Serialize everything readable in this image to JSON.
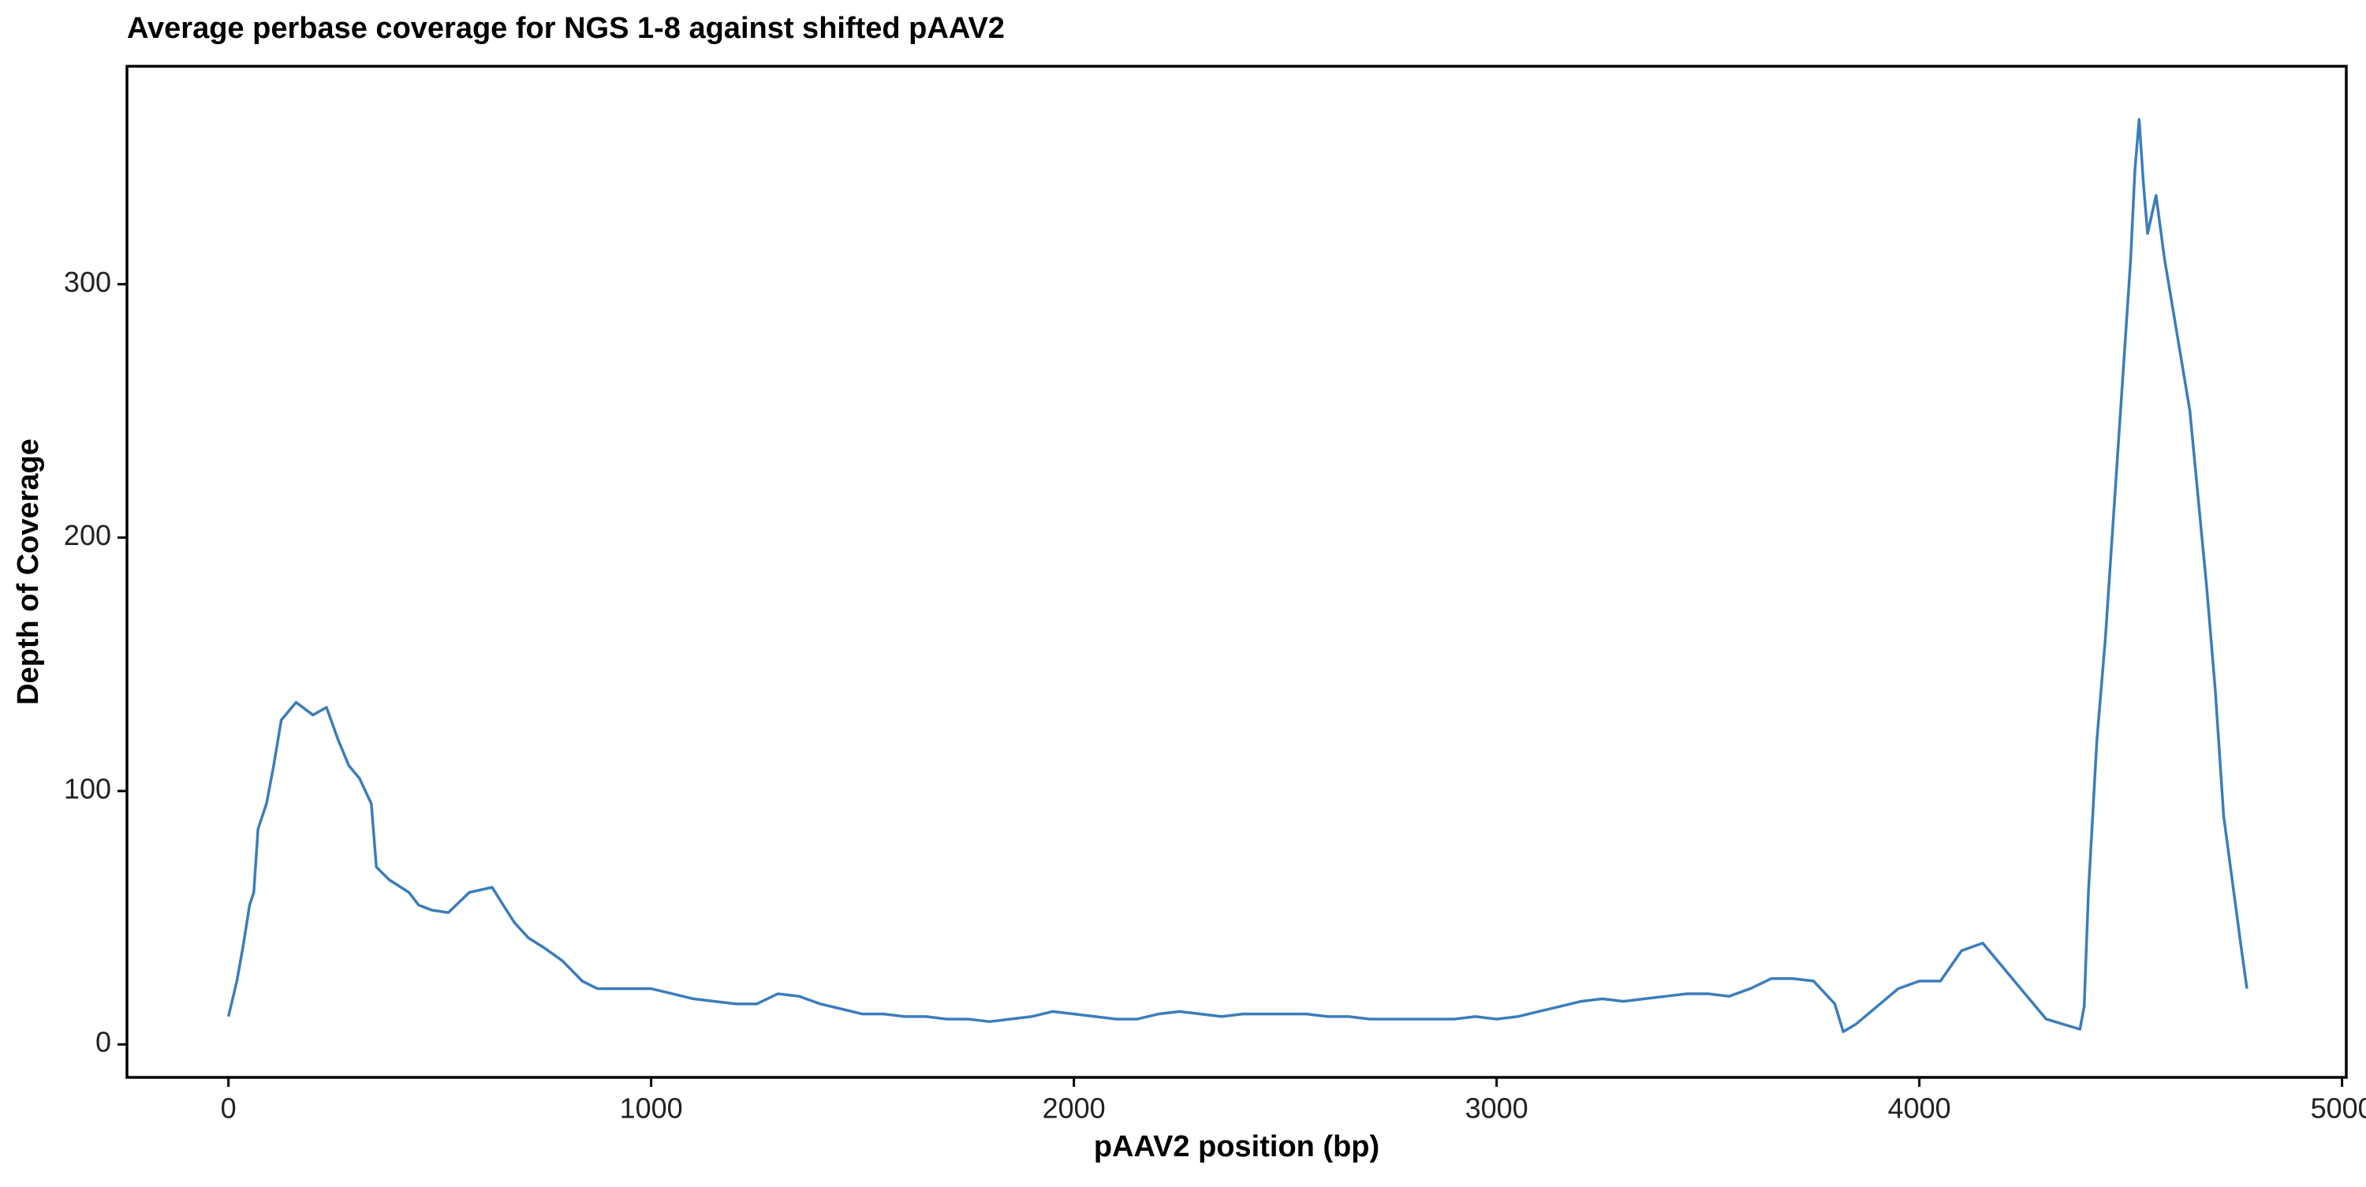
{
  "chart_data": {
    "type": "line",
    "title": "Average perbase coverage for NGS 1-8 against shifted pAAV2",
    "x_label": "pAAV2 position (bp)",
    "y_label": "Depth of Coverage",
    "color": "#3b7dbb",
    "x": [
      0,
      10,
      20,
      36,
      50,
      60,
      70,
      90,
      107,
      125,
      160,
      200,
      232,
      260,
      285,
      310,
      338,
      350,
      380,
      427,
      450,
      481,
      520,
      570,
      624,
      650,
      677,
      710,
      748,
      790,
      837,
      873,
      900,
      950,
      1000,
      1050,
      1100,
      1150,
      1200,
      1250,
      1300,
      1350,
      1400,
      1450,
      1500,
      1550,
      1600,
      1650,
      1700,
      1750,
      1800,
      1850,
      1900,
      1950,
      2000,
      2050,
      2100,
      2150,
      2200,
      2250,
      2300,
      2350,
      2400,
      2450,
      2500,
      2550,
      2600,
      2650,
      2700,
      2750,
      2800,
      2850,
      2900,
      2950,
      3000,
      3050,
      3100,
      3150,
      3200,
      3250,
      3300,
      3350,
      3400,
      3450,
      3500,
      3550,
      3600,
      3650,
      3700,
      3750,
      3800,
      3820,
      3850,
      3900,
      3950,
      4000,
      4050,
      4100,
      4150,
      4200,
      4250,
      4300,
      4340,
      4360,
      4380,
      4390,
      4400,
      4420,
      4440,
      4460,
      4480,
      4500,
      4510,
      4520,
      4530,
      4540,
      4560,
      4580,
      4600,
      4620,
      4640,
      4660,
      4680,
      4700,
      4720,
      4740,
      4760,
      4775
    ],
    "values": [
      11,
      18,
      25,
      40,
      55,
      60,
      85,
      95,
      110,
      128,
      135,
      130,
      133,
      120,
      110,
      105,
      95,
      70,
      65,
      60,
      55,
      53,
      52,
      60,
      62,
      55,
      48,
      42,
      38,
      33,
      25,
      22,
      22,
      22,
      22,
      20,
      18,
      17,
      16,
      16,
      20,
      19,
      16,
      14,
      12,
      12,
      11,
      11,
      10,
      10,
      9,
      10,
      11,
      13,
      12,
      11,
      10,
      10,
      12,
      13,
      12,
      11,
      12,
      12,
      12,
      12,
      11,
      11,
      10,
      10,
      10,
      10,
      10,
      11,
      10,
      11,
      13,
      15,
      17,
      18,
      17,
      18,
      19,
      20,
      20,
      19,
      22,
      26,
      26,
      25,
      16,
      5,
      8,
      15,
      22,
      25,
      25,
      37,
      40,
      30,
      20,
      10,
      8,
      7,
      6,
      15,
      60,
      120,
      160,
      210,
      260,
      310,
      345,
      365,
      340,
      320,
      335,
      310,
      290,
      270,
      250,
      215,
      180,
      140,
      90,
      65,
      40,
      22
    ],
    "xlim": [
      -240,
      5010
    ],
    "ylim": [
      -13,
      386
    ],
    "xticks": [
      0,
      1000,
      2000,
      3000,
      4000,
      5000
    ],
    "yticks": [
      0,
      100,
      200,
      300
    ],
    "grid": false
  }
}
